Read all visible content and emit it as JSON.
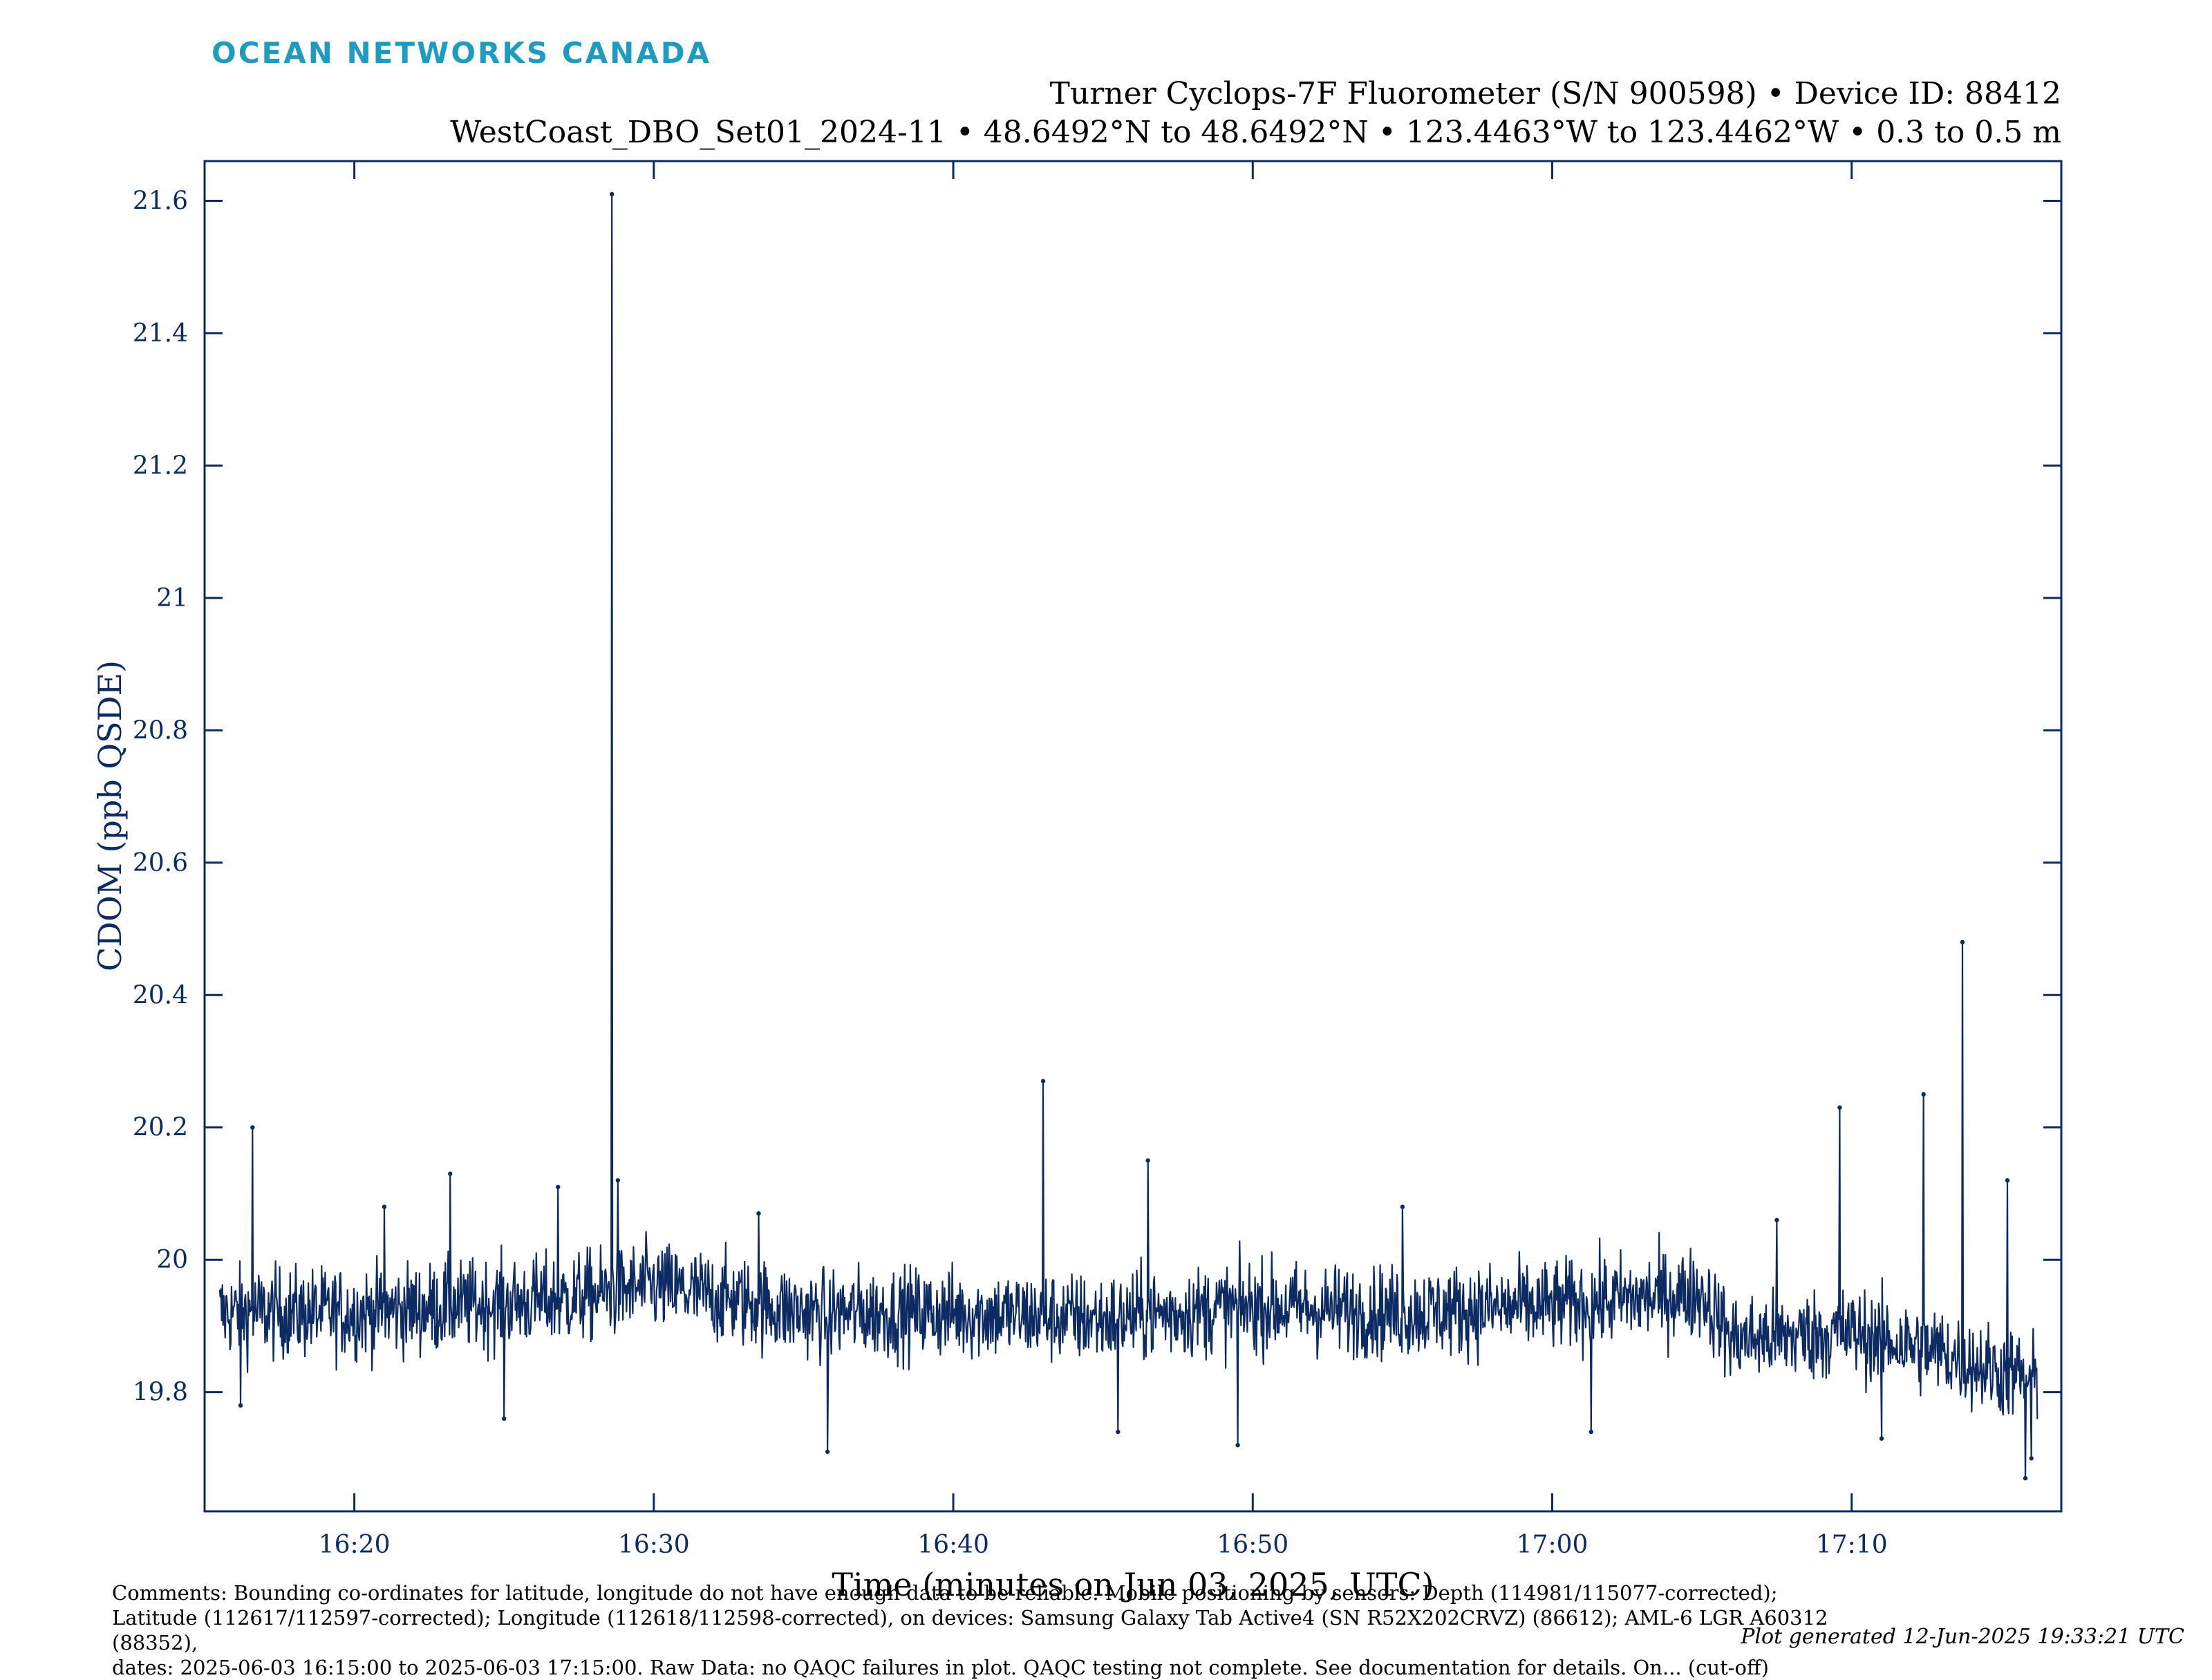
{
  "header": {
    "logo_text": "OCEAN NETWORKS CANADA",
    "title_line1": "Turner Cyclops-7F Fluorometer (S/N 900598) • Device ID: 88412",
    "title_line2": "WestCoast_DBO_Set01_2024-11 • 48.6492°N to 48.6492°N • 123.4463°W to 123.4462°W • 0.3 to 0.5 m"
  },
  "colors": {
    "logo": "#1f9bc2",
    "series": "#0d2b63",
    "axes": "#0d2b63"
  },
  "chart_data": {
    "type": "line",
    "xlabel": "Time (minutes on Jun 03, 2025, UTC)",
    "ylabel": "CDOM (ppb QSDE)",
    "x_start": "16:15",
    "x_end": "17:15",
    "xlim_minutes": [
      15,
      77
    ],
    "ylim": [
      19.62,
      21.66
    ],
    "x_ticks": [
      "16:20",
      "16:30",
      "16:40",
      "16:50",
      "17:00",
      "17:10"
    ],
    "y_ticks": [
      "19.8",
      "20",
      "20.2",
      "20.4",
      "20.6",
      "20.8",
      "21",
      "21.2",
      "21.4",
      "21.6"
    ],
    "grid": false,
    "series": [
      {
        "baseline_profile": [
          [
            15.5,
            19.92
          ],
          [
            20.0,
            19.92
          ],
          [
            27.0,
            19.94
          ],
          [
            30.0,
            19.96
          ],
          [
            35.0,
            19.92
          ],
          [
            40.0,
            19.92
          ],
          [
            45.0,
            19.91
          ],
          [
            50.0,
            19.93
          ],
          [
            55.0,
            19.92
          ],
          [
            60.0,
            19.93
          ],
          [
            65.0,
            19.95
          ],
          [
            66.0,
            19.88
          ],
          [
            70.0,
            19.89
          ],
          [
            73.0,
            19.86
          ],
          [
            75.0,
            19.83
          ],
          [
            76.2,
            19.82
          ]
        ],
        "spikes": [
          [
            16.6,
            20.2
          ],
          [
            21.0,
            20.08
          ],
          [
            23.2,
            20.13
          ],
          [
            26.8,
            20.11
          ],
          [
            28.6,
            21.61
          ],
          [
            28.8,
            20.12
          ],
          [
            33.5,
            20.07
          ],
          [
            43.0,
            20.27
          ],
          [
            46.5,
            20.15
          ],
          [
            55.0,
            20.08
          ],
          [
            67.5,
            20.06
          ],
          [
            69.6,
            20.23
          ],
          [
            72.4,
            20.25
          ],
          [
            73.7,
            20.48
          ],
          [
            75.2,
            20.12
          ]
        ],
        "dips": [
          [
            16.2,
            19.78
          ],
          [
            25.0,
            19.76
          ],
          [
            35.8,
            19.71
          ],
          [
            45.5,
            19.74
          ],
          [
            49.5,
            19.72
          ],
          [
            61.3,
            19.74
          ],
          [
            71.0,
            19.73
          ],
          [
            75.8,
            19.67
          ],
          [
            76.0,
            19.7
          ]
        ]
      }
    ]
  },
  "footer": {
    "comments_line1": "Comments: Bounding co-ordinates for latitude, longitude do not have enough data to be reliable. Mobile positioning by sensors: Depth (114981/115077-corrected);",
    "comments_line2": "Latitude (112617/112597-corrected); Longitude (112618/112598-corrected), on devices: Samsung Galaxy Tab Active4 (SN R52X202CRVZ) (86612); AML-6 LGR A60312 (88352),",
    "comments_line3": "dates: 2025-06-03 16:15:00 to 2025-06-03 17:15:00. Raw Data: no QAQC failures in plot. QAQC testing not complete. See documentation for details. On... (cut-off)",
    "generated": "Plot generated 12-Jun-2025 19:33:21 UTC"
  }
}
